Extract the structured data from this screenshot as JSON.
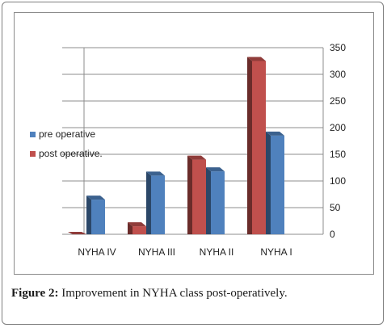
{
  "caption": {
    "label": "Figure 2:",
    "text": " Improvement in NYHA class post-operatively."
  },
  "chart_data": {
    "type": "bar",
    "style": "3d-clustered-column",
    "categories": [
      "NYHA IV",
      "NYHA III",
      "NYHA II",
      "NYHA I"
    ],
    "series": [
      {
        "name": "post operative.",
        "color": "#c0504d",
        "values": [
          0,
          15,
          140,
          325
        ]
      },
      {
        "name": "pre operative",
        "color": "#4f81bd",
        "values": [
          65,
          110,
          118,
          185
        ]
      }
    ],
    "legend_order": [
      "pre operative",
      "post operative."
    ],
    "ylim": [
      0,
      350
    ],
    "yticks": [
      0,
      50,
      100,
      150,
      200,
      250,
      300,
      350
    ],
    "y_axis_position": "right",
    "legend_position": "left",
    "grid": true,
    "title": "",
    "xlabel": "",
    "ylabel": ""
  }
}
